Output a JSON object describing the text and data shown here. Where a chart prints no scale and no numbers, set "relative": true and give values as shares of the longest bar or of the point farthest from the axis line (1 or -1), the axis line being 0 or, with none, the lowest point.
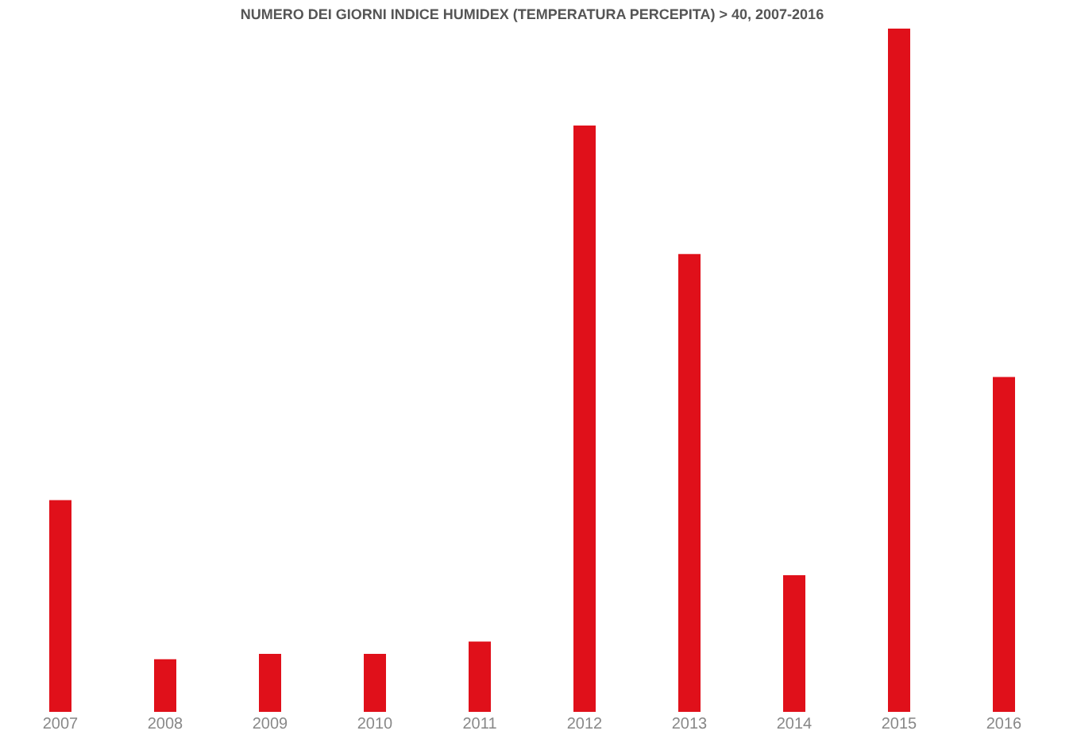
{
  "chart_data": {
    "type": "bar",
    "title": "NUMERO DEI GIORNI INDICE HUMIDEX (TEMPERATURA PERCEPITA) > 40, 2007-2016",
    "categories": [
      "2007",
      "2008",
      "2009",
      "2010",
      "2011",
      "2012",
      "2013",
      "2014",
      "2015",
      "2016"
    ],
    "values": [
      0.31,
      0.077,
      0.085,
      0.085,
      0.103,
      0.858,
      0.67,
      0.2,
      1,
      0.49
    ],
    "color": "#e0101a",
    "relative": true
  }
}
